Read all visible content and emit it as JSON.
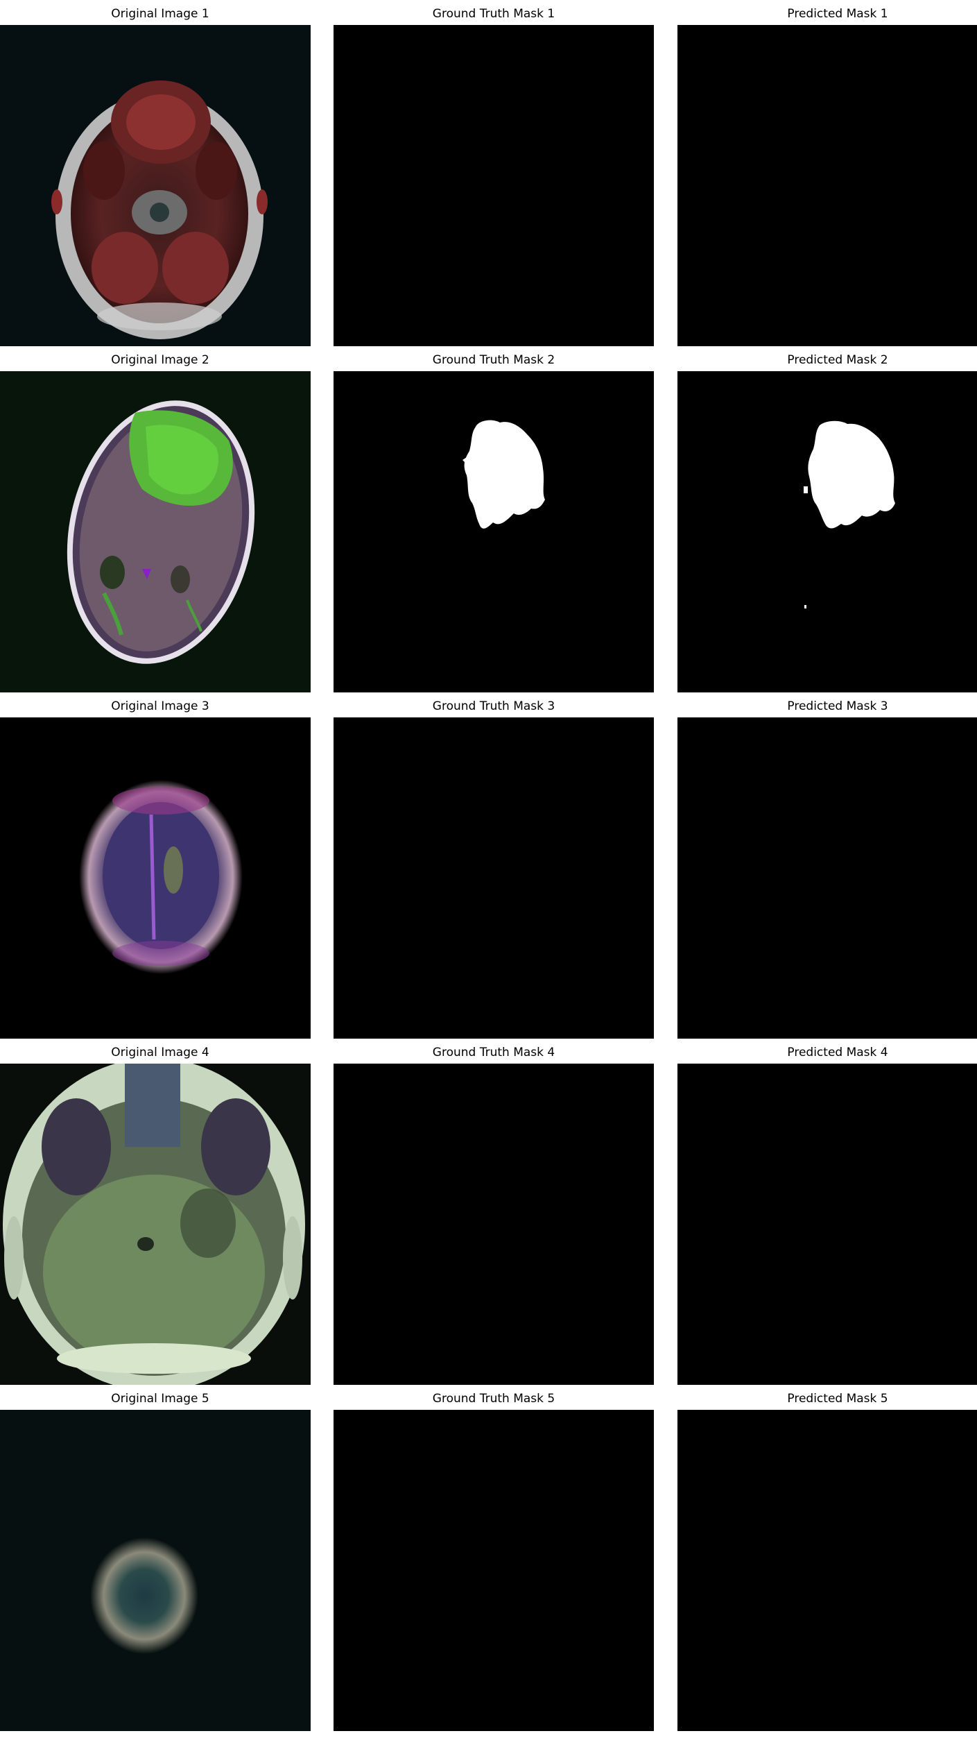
{
  "figure": {
    "columns": [
      "original",
      "ground_truth",
      "predicted"
    ],
    "rows": [
      {
        "original_title": "Original Image 1",
        "gt_title": "Ground Truth Mask 1",
        "pred_title": "Predicted Mask 1",
        "scan": "axial-skull-base",
        "gt_has_tumor": false,
        "pred_has_tumor": false
      },
      {
        "original_title": "Original Image 2",
        "gt_title": "Ground Truth Mask 2",
        "pred_title": "Predicted Mask 2",
        "scan": "axial-brain-with-green-tumor",
        "gt_has_tumor": true,
        "pred_has_tumor": true
      },
      {
        "original_title": "Original Image 3",
        "gt_title": "Ground Truth Mask 3",
        "pred_title": "Predicted Mask 3",
        "scan": "axial-brain-top-slice",
        "gt_has_tumor": false,
        "pred_has_tumor": false
      },
      {
        "original_title": "Original Image 4",
        "gt_title": "Ground Truth Mask 4",
        "pred_title": "Predicted Mask 4",
        "scan": "axial-cerebellum",
        "gt_has_tumor": false,
        "pred_has_tumor": false
      },
      {
        "original_title": "Original Image 5",
        "gt_title": "Ground Truth Mask 5",
        "pred_title": "Predicted Mask 5",
        "scan": "axial-small-vertex-slice",
        "gt_has_tumor": false,
        "pred_has_tumor": false
      }
    ]
  }
}
